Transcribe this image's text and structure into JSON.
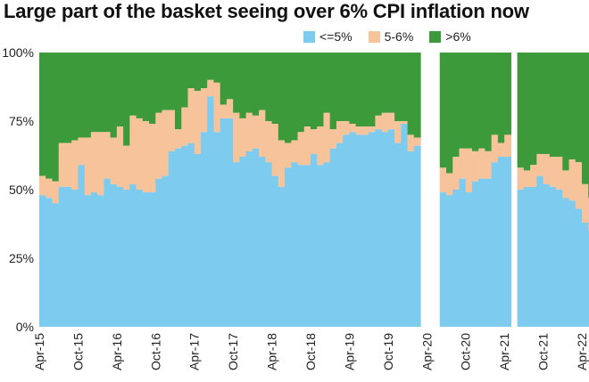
{
  "title": "Large part of the basket seeing over 6% CPI inflation now",
  "legend": [
    {
      "label": "<=5%",
      "color": "#7ecbf0"
    },
    {
      "label": "5-6%",
      "color": "#f7c39a"
    },
    {
      "label": ">6%",
      "color": "#3d9a3a"
    }
  ],
  "chart_data": {
    "type": "area",
    "title": "Large part of the basket seeing over 6% CPI inflation now",
    "stacked": true,
    "normalized": true,
    "ylim": [
      0,
      100
    ],
    "yticks": [
      "0%",
      "25%",
      "50%",
      "75%",
      "100%"
    ],
    "xticks": [
      "Apr-15",
      "Oct-15",
      "Apr-16",
      "Oct-16",
      "Apr-17",
      "Oct-17",
      "Apr-18",
      "Oct-18",
      "Apr-19",
      "Oct-19",
      "Apr-20",
      "Oct-20",
      "Apr-21",
      "Oct-21",
      "Apr-22"
    ],
    "series": [
      {
        "name": "<=5%",
        "color": "#7ecbf0"
      },
      {
        "name": "5-6%",
        "color": "#f7c39a"
      },
      {
        "name": ">6%",
        "color": "#3d9a3a"
      }
    ],
    "periods": [
      {
        "start": "Apr-15",
        "le5": [
          48,
          47,
          45,
          51,
          51,
          50,
          59,
          48,
          49,
          48,
          54,
          52,
          51,
          50,
          52,
          50,
          49,
          49,
          54,
          55,
          64,
          65,
          66,
          67,
          63,
          71,
          84,
          71,
          76,
          76,
          60,
          62,
          64,
          65,
          62,
          60,
          55,
          51,
          58,
          60,
          59,
          59,
          63,
          59,
          60,
          65,
          67,
          70,
          71,
          70,
          70,
          71,
          72,
          71,
          72,
          67,
          74,
          64,
          66
        ],
        "le6": [
          55,
          54,
          53,
          67,
          67,
          68,
          69,
          69,
          71,
          71,
          71,
          69,
          73,
          66,
          77,
          76,
          75,
          74,
          78,
          79,
          79,
          72,
          80,
          87,
          86,
          87,
          90,
          89,
          81,
          83,
          78,
          76,
          78,
          77,
          79,
          75,
          74,
          68,
          67,
          68,
          71,
          73,
          72,
          73,
          78,
          72,
          75,
          75,
          74,
          73,
          73,
          73,
          77,
          78,
          78,
          75,
          75,
          70,
          69
        ]
      },
      {
        "start": "Jun-20",
        "le5": [
          49,
          48,
          50,
          54,
          49,
          53,
          54,
          54,
          60,
          62,
          62
        ],
        "le6": [
          58,
          56,
          62,
          65,
          65,
          64,
          65,
          64,
          70,
          67,
          70
        ]
      },
      {
        "start": "Jun-21",
        "le5": [
          50,
          51,
          51,
          55,
          52,
          51,
          50,
          47,
          46,
          43,
          38,
          35
        ],
        "le6": [
          58,
          57,
          59,
          63,
          63,
          62,
          62,
          57,
          61,
          60,
          52,
          47
        ]
      }
    ]
  }
}
